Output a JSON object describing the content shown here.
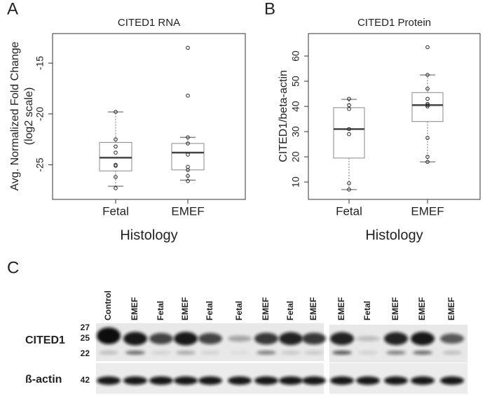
{
  "chart_data": [
    {
      "type": "box",
      "panel_label": "A",
      "title": "CITED1 RNA",
      "ylabel": [
        "Avg. Normalized Fold Change",
        "(log2 scale)"
      ],
      "xlabel": "Histology",
      "categories": [
        "Fetal",
        "EMEF"
      ],
      "boxes": [
        {
          "whisker_low": -27.1,
          "q1": -25.6,
          "median": -24.3,
          "q3": -22.8,
          "whisker_high": -19.8,
          "points": [
            -19.8,
            -22.5,
            -23.2,
            -23.8,
            -25.0,
            -25.1,
            -26.2,
            -27.3
          ]
        },
        {
          "whisker_low": -26.5,
          "q1": -25.5,
          "median": -23.8,
          "q3": -22.9,
          "whisker_high": -22.3,
          "points": [
            -13.5,
            -18.2,
            -22.3,
            -22.9,
            -24.0,
            -25.2,
            -25.5,
            -26.1,
            -26.6
          ]
        }
      ],
      "ylim": [
        -28.4,
        -12.1
      ],
      "yticks": [
        -25,
        -20,
        -15
      ],
      "color": "#555555"
    },
    {
      "type": "box",
      "panel_label": "B",
      "title": "CITED1 Protein",
      "ylabel": [
        "CITED1/beta-actin"
      ],
      "xlabel": "Histology",
      "categories": [
        "Fetal",
        "EMEF"
      ],
      "boxes": [
        {
          "whisker_low": 7,
          "q1": 19.5,
          "median": 31,
          "q3": 39.5,
          "whisker_high": 42.8,
          "points": [
            43,
            40.5,
            39,
            31,
            29,
            9.5,
            7
          ]
        },
        {
          "whisker_low": 18,
          "q1": 34,
          "median": 40.5,
          "q3": 45.5,
          "whisker_high": 52.5,
          "points": [
            63.5,
            52.5,
            47,
            43,
            41,
            40.5,
            40,
            27.5,
            20,
            18
          ]
        }
      ],
      "ylim": [
        3.1,
        68.9
      ],
      "yticks": [
        10,
        20,
        30,
        40,
        50,
        60
      ],
      "color": "#555555"
    }
  ],
  "blot": {
    "panel_label": "C",
    "lanes": [
      "Control",
      "EMEF",
      "Fetal",
      "EMEF",
      "Fetal",
      "Fetal",
      "EMEF",
      "Fetal",
      "EMEF",
      "EMEF",
      "Fetal",
      "EMEF",
      "EMEF",
      "EMEF"
    ],
    "rows": [
      {
        "label": "CITED1",
        "markers": [
          27,
          25,
          22
        ]
      },
      {
        "label": "ß-actin",
        "markers": [
          42
        ]
      }
    ]
  }
}
